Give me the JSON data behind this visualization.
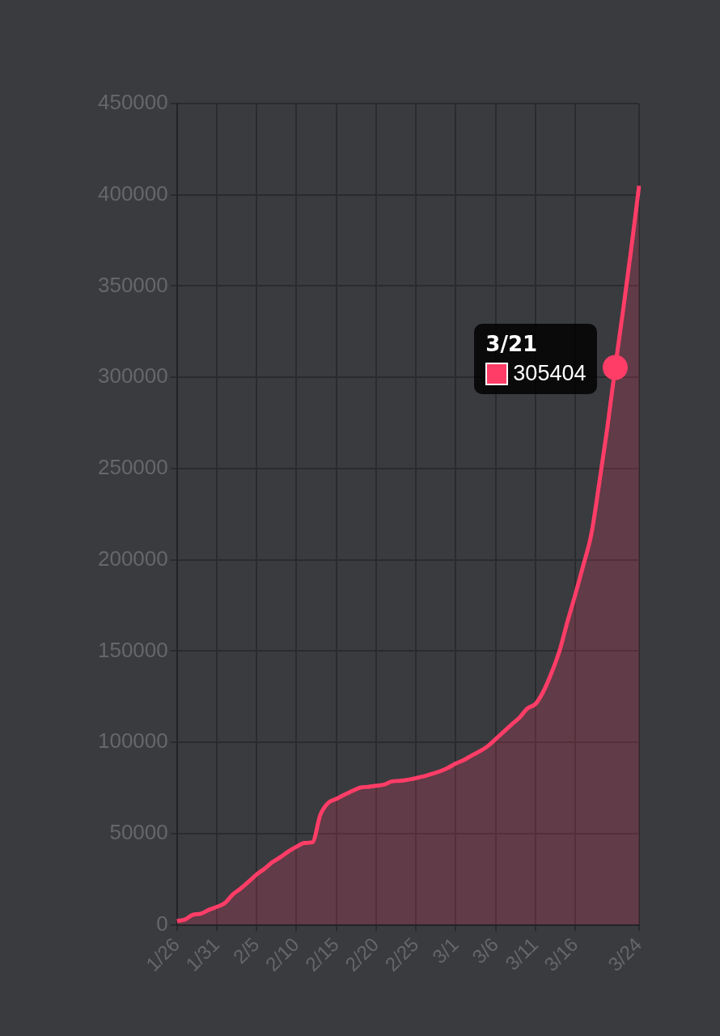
{
  "chart_data": {
    "type": "area",
    "categories": [
      "1/26",
      null,
      null,
      null,
      null,
      "1/31",
      null,
      null,
      null,
      null,
      "2/5",
      null,
      null,
      null,
      null,
      "2/10",
      null,
      null,
      null,
      null,
      "2/15",
      null,
      null,
      null,
      null,
      "2/20",
      null,
      null,
      null,
      null,
      "2/25",
      null,
      null,
      null,
      null,
      "3/1",
      null,
      null,
      null,
      null,
      "3/6",
      null,
      null,
      null,
      null,
      "3/11",
      null,
      null,
      null,
      null,
      "3/16",
      null,
      null,
      null,
      null,
      null,
      null,
      null,
      "3/24"
    ],
    "series": [
      {
        "color": "#ff3d67",
        "values": [
          2100,
          2900,
          5500,
          6100,
          8200,
          9800,
          11900,
          16600,
          19900,
          23700,
          27600,
          30800,
          34400,
          37100,
          40200,
          42800,
          44800,
          45200,
          60300,
          66900,
          69000,
          71200,
          73300,
          75200,
          75600,
          76200,
          76800,
          78600,
          78900,
          79500,
          80400,
          81400,
          82700,
          84100,
          86000,
          88400,
          90300,
          92800,
          95100,
          97900,
          101800,
          105800,
          109800,
          113600,
          118600,
          121000,
          128000,
          138000,
          150000,
          166000,
          181000,
          197000,
          214000,
          242000,
          272000,
          305404,
          337000,
          370000,
          405000
        ]
      }
    ],
    "ylim": [
      0,
      450000
    ],
    "yticks": [
      0,
      50000,
      100000,
      150000,
      200000,
      250000,
      300000,
      350000,
      400000,
      450000
    ],
    "grid": true,
    "legend": false,
    "marker": "none",
    "line_style": "solid",
    "annotations": [
      "3/21",
      "305404"
    ]
  }
}
